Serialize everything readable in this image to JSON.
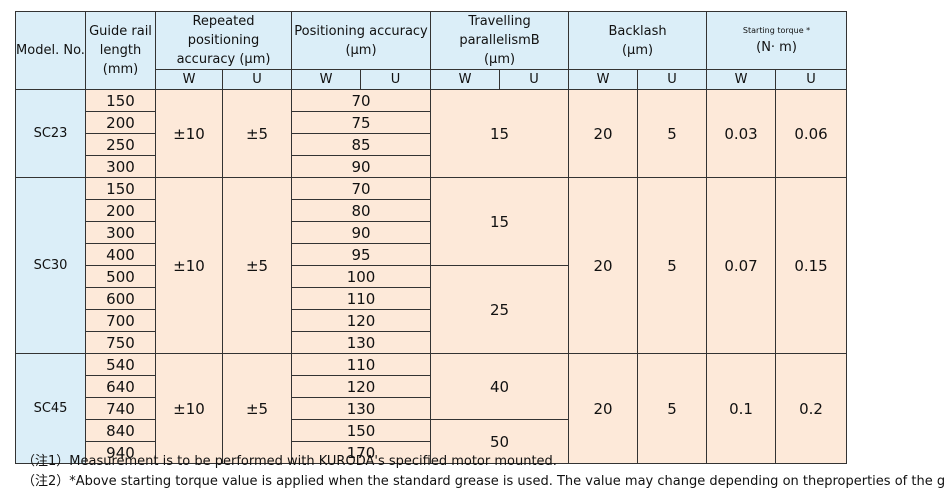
{
  "headers": {
    "model": "Model. No.",
    "rail": [
      "Guide rail",
      "length",
      "(mm)"
    ],
    "repeat": [
      "Repeated positioning",
      "accuracy (μm)"
    ],
    "position": [
      "Positioning accuracy",
      "(μm)"
    ],
    "parallel": [
      "Travelling parallelismB",
      "(μm)"
    ],
    "backlash": [
      "Backlash",
      "(μm)"
    ],
    "torque": [
      "Starting torque *",
      "(N· m)"
    ],
    "w": "W",
    "u": "U"
  },
  "groups": [
    {
      "model": "SC23",
      "lengths": [
        "150",
        "200",
        "250",
        "300"
      ],
      "repeat_w": "±10",
      "repeat_u": "±5",
      "positioning": [
        "70",
        "75",
        "85",
        "90"
      ],
      "parallelism": [
        "15"
      ],
      "backlash_w": "20",
      "backlash_u": "5",
      "torque_w": "0.03",
      "torque_u": "0.06"
    },
    {
      "model": "SC30",
      "lengths": [
        "150",
        "200",
        "300",
        "400",
        "500",
        "600",
        "700",
        "750"
      ],
      "repeat_w": "±10",
      "repeat_u": "±5",
      "positioning": [
        "70",
        "80",
        "90",
        "95",
        "100",
        "110",
        "120",
        "130"
      ],
      "parallelism": [
        "15",
        "25"
      ],
      "backlash_w": "20",
      "backlash_u": "5",
      "torque_w": "0.07",
      "torque_u": "0.15"
    },
    {
      "model": "SC45",
      "lengths": [
        "540",
        "640",
        "740",
        "840",
        "940"
      ],
      "repeat_w": "±10",
      "repeat_u": "±5",
      "positioning": [
        "110",
        "120",
        "130",
        "150",
        "170"
      ],
      "parallelism": [
        "40",
        "50"
      ],
      "backlash_w": "20",
      "backlash_u": "5",
      "torque_w": "0.1",
      "torque_u": "0.2"
    }
  ],
  "notes": [
    "（注1）Measurement is to be performed with KURODA's specified motor mounted.",
    "（注2）*Above starting torque value is applied when the standard grease is used. The value may change depending on theproperties of the grease."
  ]
}
